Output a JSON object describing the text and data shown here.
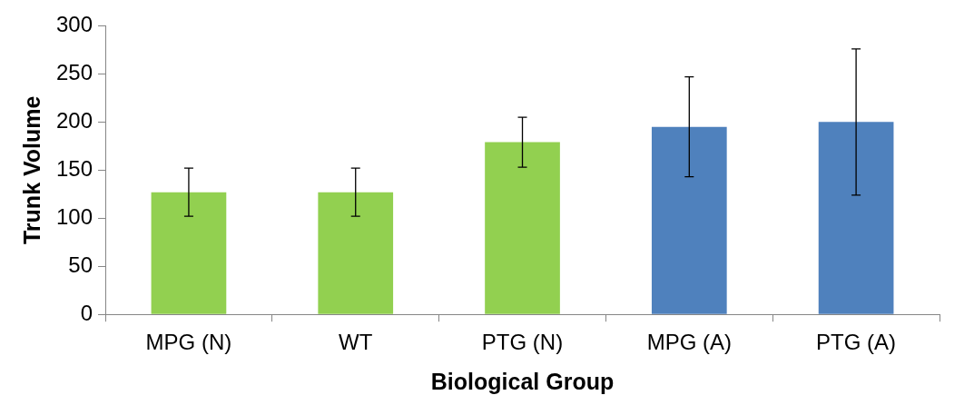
{
  "chart_data": {
    "type": "bar",
    "xlabel": "Biological Group",
    "ylabel": "Trunk Volume",
    "categories": [
      "MPG (N)",
      "WT",
      "PTG (N)",
      "MPG (A)",
      "PTG (A)"
    ],
    "values": [
      127,
      127,
      179,
      195,
      200
    ],
    "colors": [
      "#92d050",
      "#92d050",
      "#92d050",
      "#4f81bd",
      "#4f81bd"
    ],
    "errors": [
      25,
      25,
      26,
      52,
      76
    ],
    "ylim": [
      0,
      300
    ],
    "yticks": [
      0,
      50,
      100,
      150,
      200,
      250,
      300
    ],
    "grid": false,
    "legend": false
  }
}
